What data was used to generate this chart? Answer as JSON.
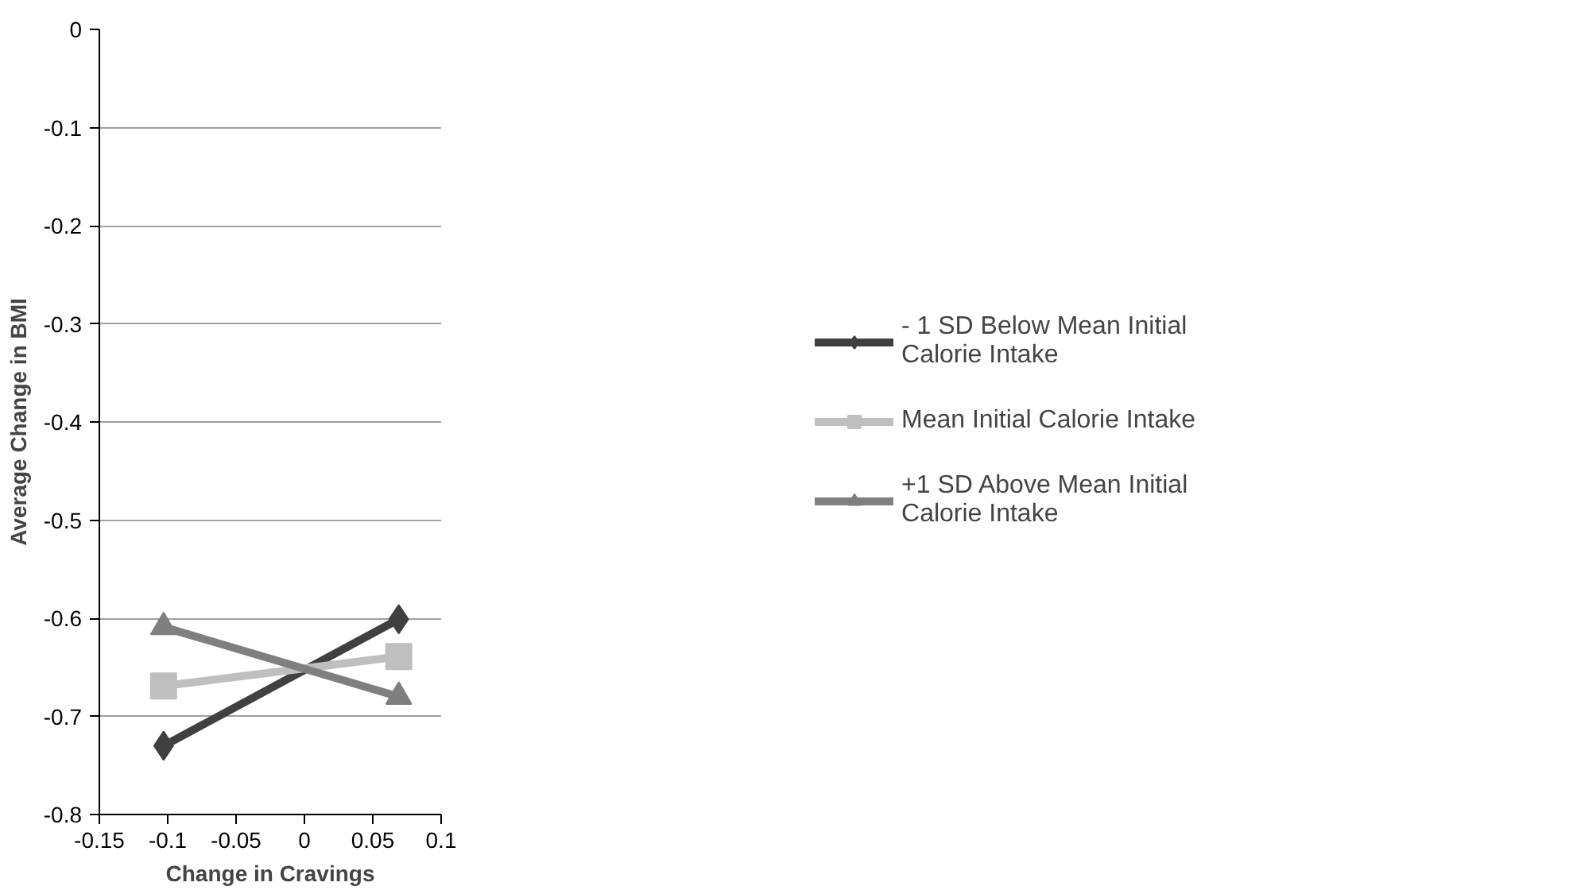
{
  "chart_data": {
    "type": "line",
    "xlabel": "Change in Cravings",
    "ylabel": "Average Change in BMI",
    "x": [
      -0.103,
      0.069
    ],
    "series": [
      {
        "name": "- 1 SD Below Mean Initial Calorie Intake",
        "color": "#404040",
        "marker": "diamond",
        "values": [
          -0.73,
          -0.601
        ]
      },
      {
        "name": "Mean Initial Calorie Intake",
        "color": "#bfbfbf",
        "marker": "square",
        "values": [
          -0.669,
          -0.639
        ]
      },
      {
        "name": "+1 SD Above Mean Initial Calorie Intake",
        "color": "#7f7f7f",
        "marker": "triangle",
        "values": [
          -0.609,
          -0.68
        ]
      }
    ],
    "xlim": [
      -0.15,
      0.1
    ],
    "xticks": [
      -0.15,
      -0.1,
      -0.05,
      0,
      0.05,
      0.1
    ],
    "ylim": [
      -0.8,
      0
    ],
    "yticks": [
      -0.8,
      -0.7,
      -0.6,
      -0.5,
      -0.4,
      -0.3,
      -0.2,
      -0.1,
      0
    ],
    "grid": "y",
    "legend": "right"
  }
}
